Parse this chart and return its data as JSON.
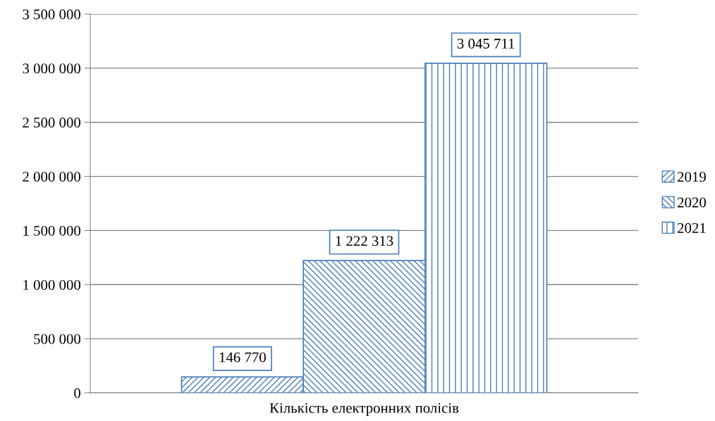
{
  "chart_data": {
    "type": "bar",
    "categories": [
      "Кількість електронних полісів"
    ],
    "series": [
      {
        "name": "2019",
        "color": "#4a7ebb",
        "values": [
          146770
        ],
        "value_labels": [
          "146 770"
        ]
      },
      {
        "name": "2020",
        "color": "#4a7ebb",
        "values": [
          1222313
        ],
        "value_labels": [
          "1 222 313"
        ]
      },
      {
        "name": "2021",
        "color": "#4a7ebb",
        "values": [
          3045711
        ],
        "value_labels": [
          "3 045 711"
        ]
      }
    ],
    "ylim": [
      0,
      3500000
    ],
    "yticks": [
      {
        "value": 0,
        "label": "0"
      },
      {
        "value": 500000,
        "label": "500 000"
      },
      {
        "value": 1000000,
        "label": "1 000 000"
      },
      {
        "value": 1500000,
        "label": "1 500 000"
      },
      {
        "value": 2000000,
        "label": "2 000 000"
      },
      {
        "value": 2500000,
        "label": "2 500 000"
      },
      {
        "value": 3000000,
        "label": "3 000 000"
      },
      {
        "value": 3500000,
        "label": "3 500 000"
      }
    ],
    "grid": "y",
    "legend": "right"
  }
}
